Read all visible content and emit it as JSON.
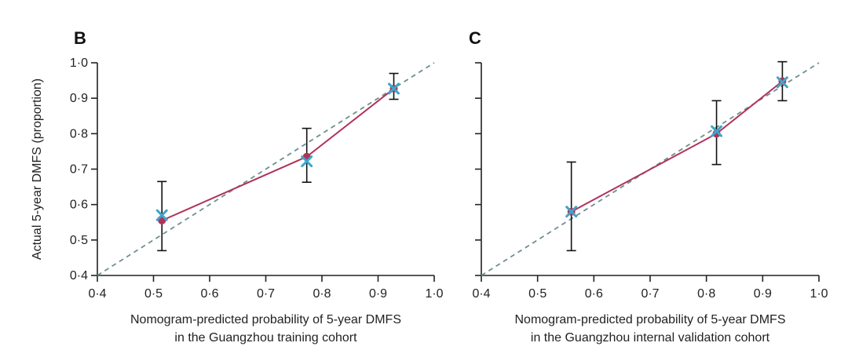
{
  "colors": {
    "line": "#b0335a",
    "point": "#b0335a",
    "cross": "#3ea6c7",
    "reference": "#6f8f94"
  },
  "chart_data": [
    {
      "type": "line",
      "panel": "B",
      "ylabel": "Actual 5-year DMFS (proportion)",
      "xlabel_lines": [
        "Nomogram-predicted probability of 5-year DMFS",
        "in the Guangzhou training cohort"
      ],
      "xlim": [
        0.4,
        1.0
      ],
      "ylim": [
        0.4,
        1.0
      ],
      "xticks": [
        "0·4",
        "0·5",
        "0·6",
        "0·7",
        "0·8",
        "0·9",
        "1·0"
      ],
      "yticks": [
        "0·4",
        "0·5",
        "0·6",
        "0·7",
        "0·8",
        "0·9",
        "1·0"
      ],
      "reference_line": [
        [
          0.4,
          0.4
        ],
        [
          1.0,
          1.0
        ]
      ],
      "points": [
        {
          "x": 0.515,
          "y": 0.555,
          "lower": 0.47,
          "upper": 0.665,
          "cross_y": 0.57
        },
        {
          "x": 0.773,
          "y": 0.735,
          "lower": 0.663,
          "upper": 0.815,
          "cross_y": 0.722
        },
        {
          "x": 0.928,
          "y": 0.927,
          "lower": 0.897,
          "upper": 0.97,
          "cross_y": 0.927
        }
      ],
      "show_ylabel": true,
      "show_yticklabels": true
    },
    {
      "type": "line",
      "panel": "C",
      "xlabel_lines": [
        "Nomogram-predicted probability of 5-year DMFS",
        "in the Guangzhou internal validation cohort"
      ],
      "xlim": [
        0.4,
        1.0
      ],
      "ylim": [
        0.4,
        1.0
      ],
      "xticks": [
        "0·4",
        "0·5",
        "0·6",
        "0·7",
        "0·8",
        "0·9",
        "1·0"
      ],
      "reference_line": [
        [
          0.4,
          0.4
        ],
        [
          1.0,
          1.0
        ]
      ],
      "points": [
        {
          "x": 0.56,
          "y": 0.58,
          "lower": 0.47,
          "upper": 0.72,
          "cross_y": 0.58
        },
        {
          "x": 0.818,
          "y": 0.8,
          "lower": 0.713,
          "upper": 0.893,
          "cross_y": 0.807
        },
        {
          "x": 0.935,
          "y": 0.948,
          "lower": 0.893,
          "upper": 1.003,
          "cross_y": 0.945
        }
      ],
      "show_ylabel": false,
      "show_yticklabels": false
    }
  ]
}
